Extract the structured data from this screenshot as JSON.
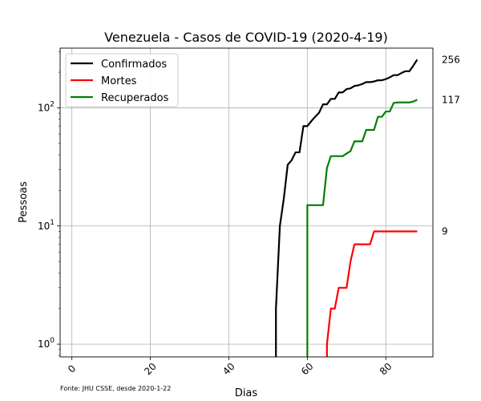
{
  "chart_data": {
    "type": "line",
    "title": "Venezuela - Casos de COVID-19 (2020-4-19)",
    "xlabel": "Dias",
    "ylabel": "Pessoas",
    "yscale": "log",
    "xlim": [
      -3,
      92
    ],
    "ylim": [
      0.78,
      320
    ],
    "grid": true,
    "legend_position": "upper left",
    "x_ticks": [
      0,
      20,
      40,
      60,
      80
    ],
    "x_tick_labels": [
      "0",
      "20",
      "40",
      "60",
      "80"
    ],
    "y_ticks": [
      1,
      10,
      100
    ],
    "y_tick_labels": [
      {
        "base": "10",
        "exp": "0"
      },
      {
        "base": "10",
        "exp": "1"
      },
      {
        "base": "10",
        "exp": "2"
      }
    ],
    "footnote": "Fonte: JHU CSSE, desde 2020-1-22",
    "series": [
      {
        "name": "Confirmados",
        "color": "#000000",
        "end_label": "256",
        "x": [
          52,
          52,
          53,
          54,
          55,
          56,
          57,
          58,
          59,
          60,
          61,
          62,
          63,
          64,
          65,
          66,
          67,
          68,
          69,
          70,
          71,
          72,
          73,
          74,
          75,
          76,
          77,
          78,
          79,
          80,
          81,
          82,
          83,
          84,
          85,
          86,
          87,
          88
        ],
        "y": [
          0.5,
          2,
          10,
          17,
          33,
          36,
          42,
          42,
          70,
          70,
          77,
          84,
          91,
          107,
          107,
          119,
          119,
          135,
          135,
          144,
          146,
          153,
          155,
          159,
          165,
          165,
          167,
          171,
          171,
          175,
          181,
          189,
          189,
          197,
          204,
          204,
          227,
          256
        ]
      },
      {
        "name": "Mortes",
        "color": "#ff0000",
        "end_label": "9",
        "x": [
          65,
          65,
          66,
          67,
          68,
          69,
          70,
          71,
          72,
          73,
          74,
          75,
          76,
          77,
          78,
          79,
          80,
          81,
          82,
          83,
          84,
          85,
          86,
          87,
          88
        ],
        "y": [
          0.5,
          1,
          2,
          2,
          3,
          3,
          3,
          5,
          7,
          7,
          7,
          7,
          7,
          9,
          9,
          9,
          9,
          9,
          9,
          9,
          9,
          9,
          9,
          9,
          9
        ]
      },
      {
        "name": "Recuperados",
        "color": "#008000",
        "end_label": "117",
        "x": [
          60,
          60,
          61,
          62,
          63,
          64,
          65,
          66,
          67,
          68,
          69,
          70,
          71,
          72,
          73,
          74,
          75,
          76,
          77,
          78,
          79,
          80,
          81,
          82,
          83,
          84,
          85,
          86,
          87,
          88
        ],
        "y": [
          0.5,
          15,
          15,
          15,
          15,
          15,
          31,
          39,
          39,
          39,
          39,
          41,
          43,
          52,
          52,
          52,
          65,
          65,
          65,
          84,
          84,
          93,
          93,
          110,
          111,
          111,
          111,
          111,
          113,
          117
        ]
      }
    ]
  }
}
